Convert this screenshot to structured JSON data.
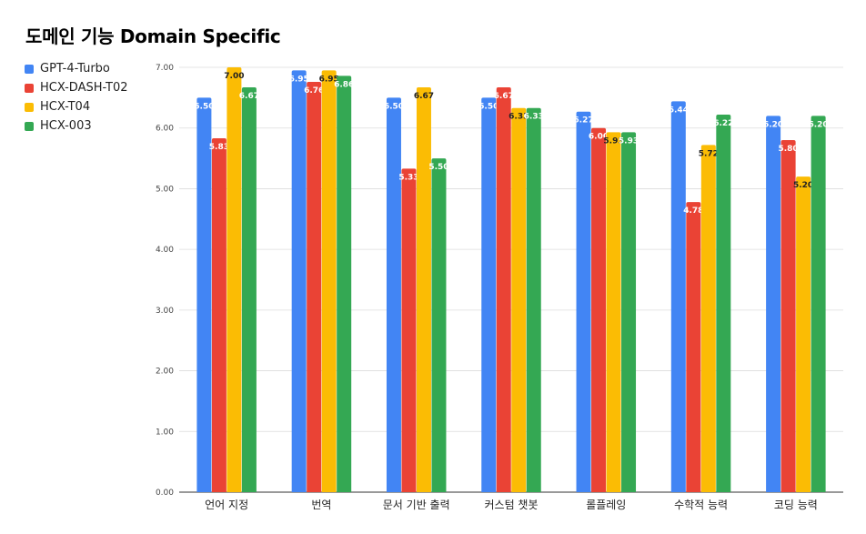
{
  "chart_data": {
    "type": "bar",
    "title": "도메인 기능 Domain Specific",
    "categories": [
      "언어 지정",
      "번역",
      "문서 기반 출력",
      "커스텀 챗봇",
      "롤플레잉",
      "수학적 능력",
      "코딩 능력"
    ],
    "series": [
      {
        "name": "GPT-4-Turbo",
        "color": "#4285F4",
        "values": [
          6.5,
          6.95,
          6.5,
          6.5,
          6.27,
          6.44,
          6.2
        ]
      },
      {
        "name": "HCX-DASH-T02",
        "color": "#EA4335",
        "values": [
          5.83,
          6.76,
          5.33,
          6.67,
          6.0,
          4.78,
          5.8
        ]
      },
      {
        "name": "HCX-T04",
        "color": "#FBBC04",
        "values": [
          7.0,
          6.95,
          6.67,
          6.33,
          5.93,
          5.72,
          5.2
        ]
      },
      {
        "name": "HCX-003",
        "color": "#34A853",
        "values": [
          6.67,
          6.86,
          5.5,
          6.33,
          5.93,
          6.22,
          6.2
        ]
      }
    ],
    "ylim": [
      0,
      7
    ],
    "yticks": [
      "0.00",
      "1.00",
      "2.00",
      "3.00",
      "4.00",
      "5.00",
      "6.00",
      "7.00"
    ],
    "grid": true,
    "legend_position": "left"
  }
}
